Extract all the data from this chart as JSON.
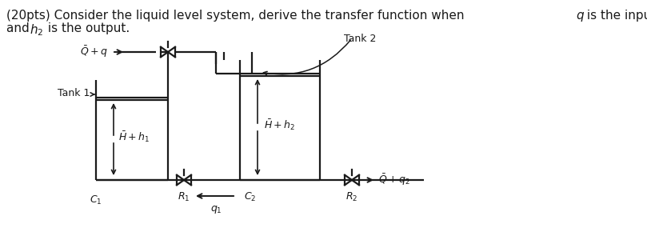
{
  "background_color": "#ffffff",
  "line_color": "#1a1a1a",
  "text_color": "#1a1a1a",
  "tank1_label": "Tank 1",
  "tank2_label": "Tank 2",
  "label_H_h1": "$\\bar{H} + h_1$",
  "label_H_h2": "$\\bar{H} + h_2$",
  "label_Q_q_in": "$\\bar{Q} + q$",
  "label_R1": "$R_1$",
  "label_R2": "$R_2$",
  "label_C1": "$C_1$",
  "label_C2": "$C_2$",
  "label_q1": "$q_1$",
  "label_Q_q2": "$\\bar{Q} + q_2$",
  "title_part1": "(20pts) Consider the liquid level system, derive the transfer function when ",
  "title_q": "q",
  "title_part2": " is the input",
  "title_part3": "and ",
  "title_h2": "h",
  "title_part4": " is the output."
}
